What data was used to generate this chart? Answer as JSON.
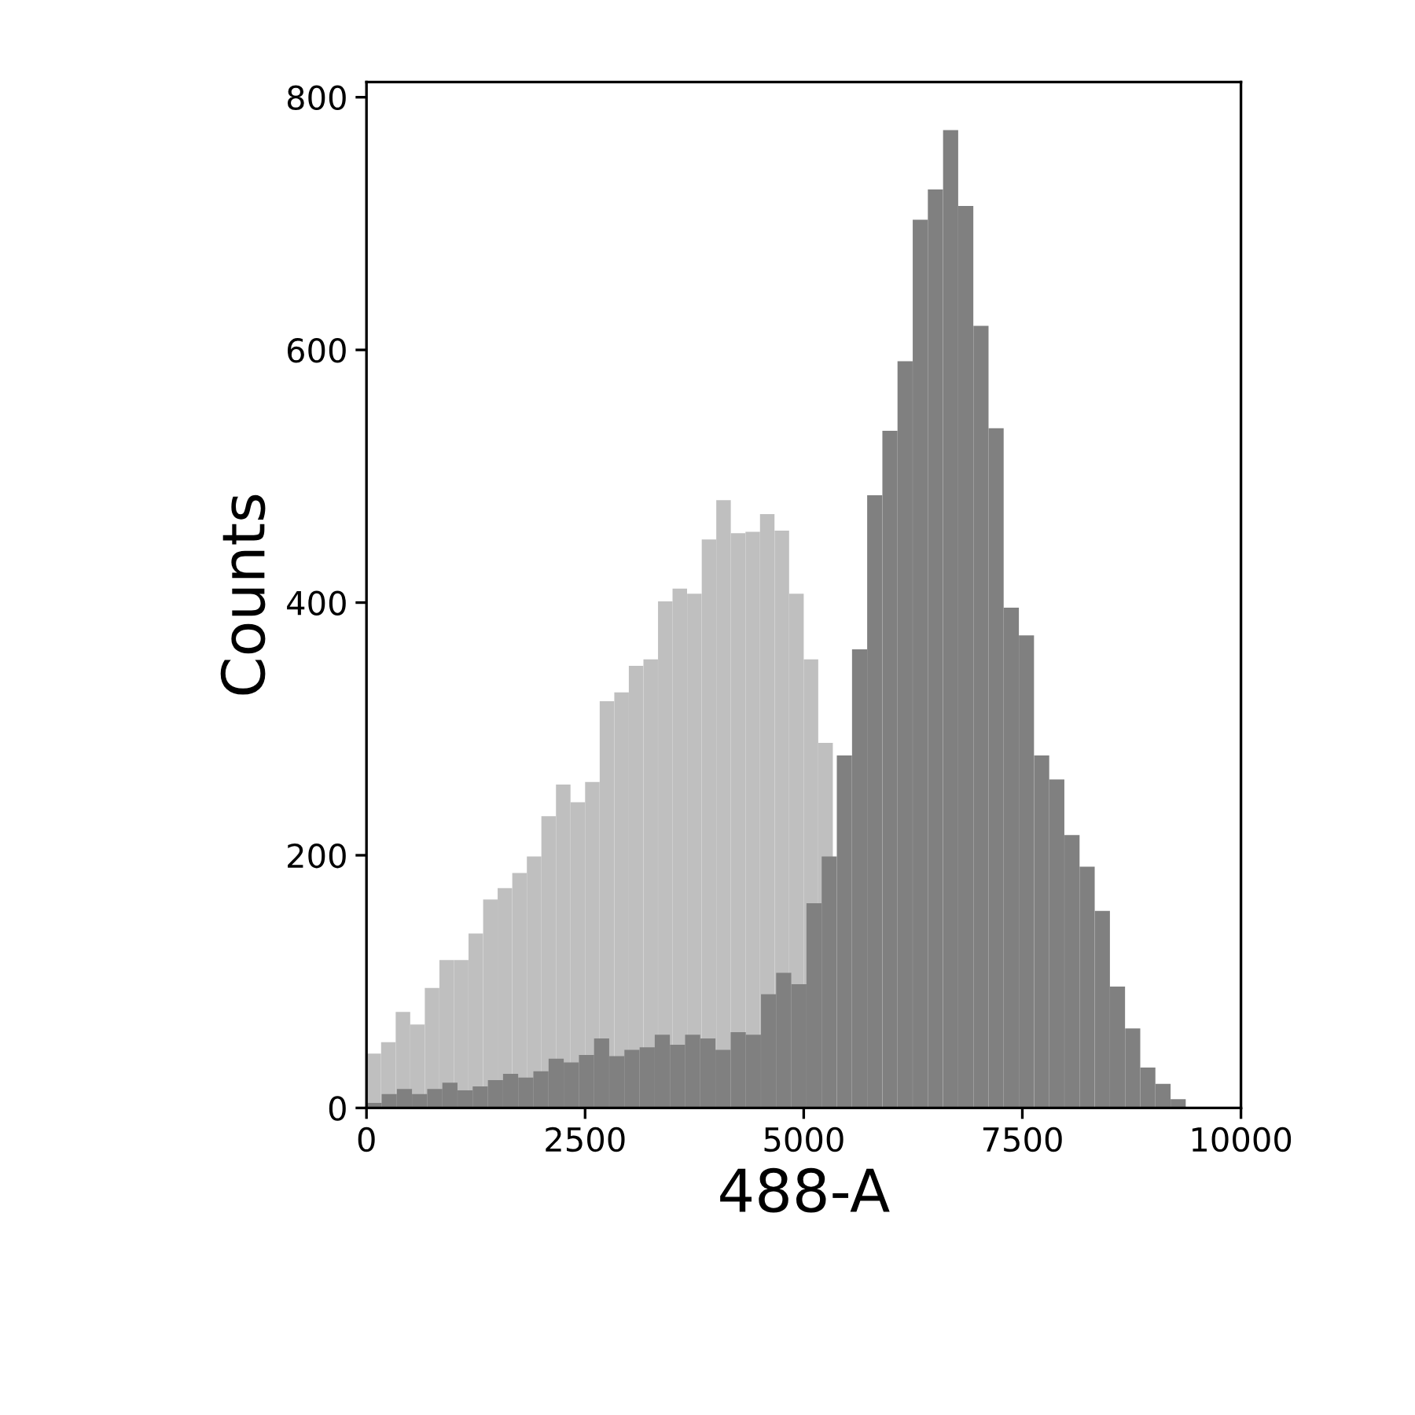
{
  "chart_data": {
    "type": "bar",
    "xlabel": "488-A",
    "ylabel": "Counts",
    "series": [
      {
        "color": "#bfbfbf",
        "x": [
          83,
          250,
          417,
          583,
          750,
          917,
          1083,
          1250,
          1417,
          1583,
          1750,
          1917,
          2083,
          2250,
          2417,
          2583,
          2750,
          2917,
          3083,
          3250,
          3417,
          3583,
          3750,
          3917,
          4083,
          4250,
          4417,
          4583,
          4750,
          4917,
          5083,
          5250
        ],
        "values": [
          43,
          52,
          76,
          66,
          95,
          117,
          117,
          138,
          165,
          174,
          186,
          199,
          231,
          256,
          242,
          258,
          322,
          329,
          350,
          355,
          401,
          411,
          407,
          450,
          481,
          455,
          456,
          470,
          457,
          407,
          355,
          289
        ]
      },
      {
        "color": "#808080",
        "x": [
          87,
          260,
          434,
          607,
          781,
          954,
          1128,
          1301,
          1475,
          1648,
          1822,
          1995,
          2169,
          2342,
          2516,
          2689,
          2863,
          3036,
          3210,
          3383,
          3557,
          3730,
          3904,
          4077,
          4251,
          4424,
          4598,
          4771,
          4945,
          5118,
          5292,
          5465,
          5639,
          5812,
          5986,
          6159,
          6333,
          6506,
          6680,
          6853,
          7027,
          7200,
          7374,
          7547,
          7721,
          7894,
          8068,
          8241,
          8415,
          8588,
          8762,
          8935,
          9109,
          9282
        ],
        "values": [
          4,
          11,
          15,
          11,
          15,
          20,
          14,
          17,
          22,
          27,
          24,
          29,
          39,
          36,
          42,
          55,
          41,
          46,
          48,
          58,
          50,
          58,
          55,
          46,
          60,
          58,
          90,
          107,
          98,
          162,
          199,
          279,
          363,
          485,
          536,
          591,
          703,
          727,
          774,
          714,
          619,
          538,
          396,
          374,
          279,
          260,
          216,
          191,
          156,
          96,
          63,
          32,
          19,
          7
        ]
      }
    ],
    "xlim": [
      0,
      10000
    ],
    "xticks": [
      0,
      2500,
      5000,
      7500,
      10000
    ],
    "ylim": [
      0,
      812
    ],
    "yticks": [
      0,
      200,
      400,
      600,
      800
    ],
    "grid": false
  }
}
